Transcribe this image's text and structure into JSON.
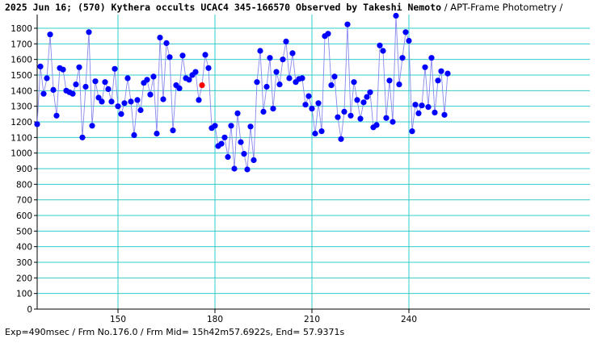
{
  "title": {
    "main": "2025 Jun 16; (570) Kythera occults UCAC4 345-166570 Observed by Takeshi Nemoto",
    "suffix": " / APT-Frame Photometry /"
  },
  "footer": "Exp=490msec / Frm No.176.0 / Frm Mid= 15h42m57.6922s, End= 57.9371s",
  "colors": {
    "gridline": "#33cccc",
    "line": "#8888ee",
    "point": "#0000ff",
    "highlight": "#ff0000",
    "axis": "#000000"
  },
  "chart_data": {
    "type": "scatter",
    "title": "",
    "xlabel": "",
    "ylabel": "",
    "xlim": [
      125,
      300
    ],
    "ylim": [
      0,
      1900
    ],
    "grid": true,
    "x_ticks": [
      150,
      180,
      210,
      240
    ],
    "y_ticks": [
      0,
      100,
      200,
      300,
      400,
      500,
      600,
      700,
      800,
      900,
      1000,
      1100,
      1200,
      1300,
      1400,
      1500,
      1600,
      1700,
      1800
    ],
    "x_start": 125,
    "highlight_frame": 176,
    "values": [
      1185,
      1555,
      1380,
      1480,
      1760,
      1405,
      1240,
      1545,
      1535,
      1400,
      1390,
      1380,
      1440,
      1550,
      1100,
      1425,
      1775,
      1175,
      1460,
      1355,
      1330,
      1455,
      1410,
      1330,
      1540,
      1300,
      1250,
      1320,
      1480,
      1330,
      1115,
      1340,
      1275,
      1450,
      1470,
      1375,
      1490,
      1125,
      1740,
      1345,
      1705,
      1615,
      1145,
      1435,
      1415,
      1625,
      1480,
      1470,
      1500,
      1520,
      1340,
      1435,
      1630,
      1545,
      1160,
      1175,
      1045,
      1060,
      1100,
      975,
      1175,
      900,
      1255,
      1070,
      995,
      895,
      1170,
      955,
      1455,
      1655,
      1265,
      1425,
      1610,
      1285,
      1520,
      1440,
      1600,
      1715,
      1480,
      1640,
      1455,
      1475,
      1480,
      1310,
      1365,
      1285,
      1125,
      1320,
      1140,
      1750,
      1765,
      1435,
      1490,
      1230,
      1090,
      1265,
      1825,
      1240,
      1455,
      1340,
      1220,
      1325,
      1360,
      1390,
      1165,
      1180,
      1690,
      1655,
      1225,
      1465,
      1200,
      1880,
      1440,
      1610,
      1775,
      1720,
      1140,
      1310,
      1255,
      1305,
      1550,
      1295,
      1610,
      1260,
      1465,
      1525,
      1245,
      1510
    ]
  }
}
